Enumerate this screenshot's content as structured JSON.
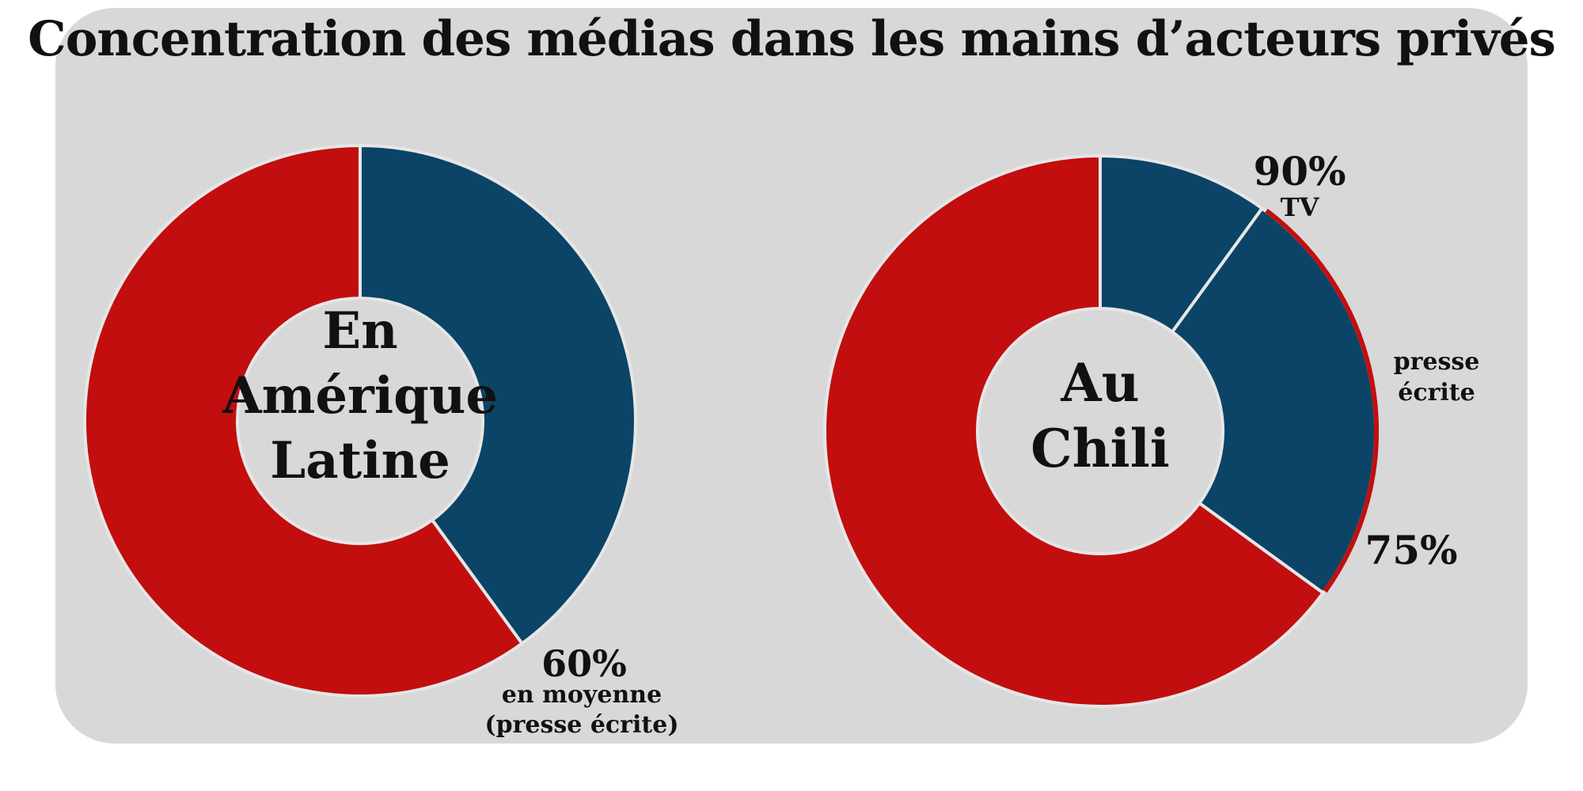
{
  "title": "Concentration des médias dans les mains d’acteurs privés",
  "colors": {
    "panel": "#d8d8d8",
    "private": "#0b4467",
    "other": "#c20e0e",
    "divider": "#e6e6e6"
  },
  "chart_data": [
    {
      "type": "pie",
      "variant": "donut",
      "center_label": [
        "En",
        "Amérique",
        "Latine"
      ],
      "slices": [
        {
          "key": "private",
          "value": 40,
          "color": "#0b4467"
        },
        {
          "key": "other",
          "value": 60,
          "color": "#c20e0e"
        }
      ],
      "annotations": [
        {
          "text": "60%",
          "role": "value"
        },
        {
          "text": "en moyenne",
          "role": "note"
        },
        {
          "text": "(presse écrite)",
          "role": "note"
        }
      ]
    },
    {
      "type": "pie",
      "variant": "donut",
      "center_label": [
        "Au",
        "Chili"
      ],
      "slices": [
        {
          "key": "tv",
          "value": 10,
          "color": "#0b4467"
        },
        {
          "key": "presse",
          "value": 25,
          "color": "#0b4467",
          "outline": "#c20e0e"
        },
        {
          "key": "other",
          "value": 65,
          "color": "#c20e0e"
        }
      ],
      "annotations": [
        {
          "text": "90%",
          "role": "value"
        },
        {
          "text": "TV",
          "role": "note"
        },
        {
          "text": "presse",
          "role": "note"
        },
        {
          "text": "écrite",
          "role": "note"
        },
        {
          "text": "75%",
          "role": "value"
        }
      ]
    }
  ]
}
